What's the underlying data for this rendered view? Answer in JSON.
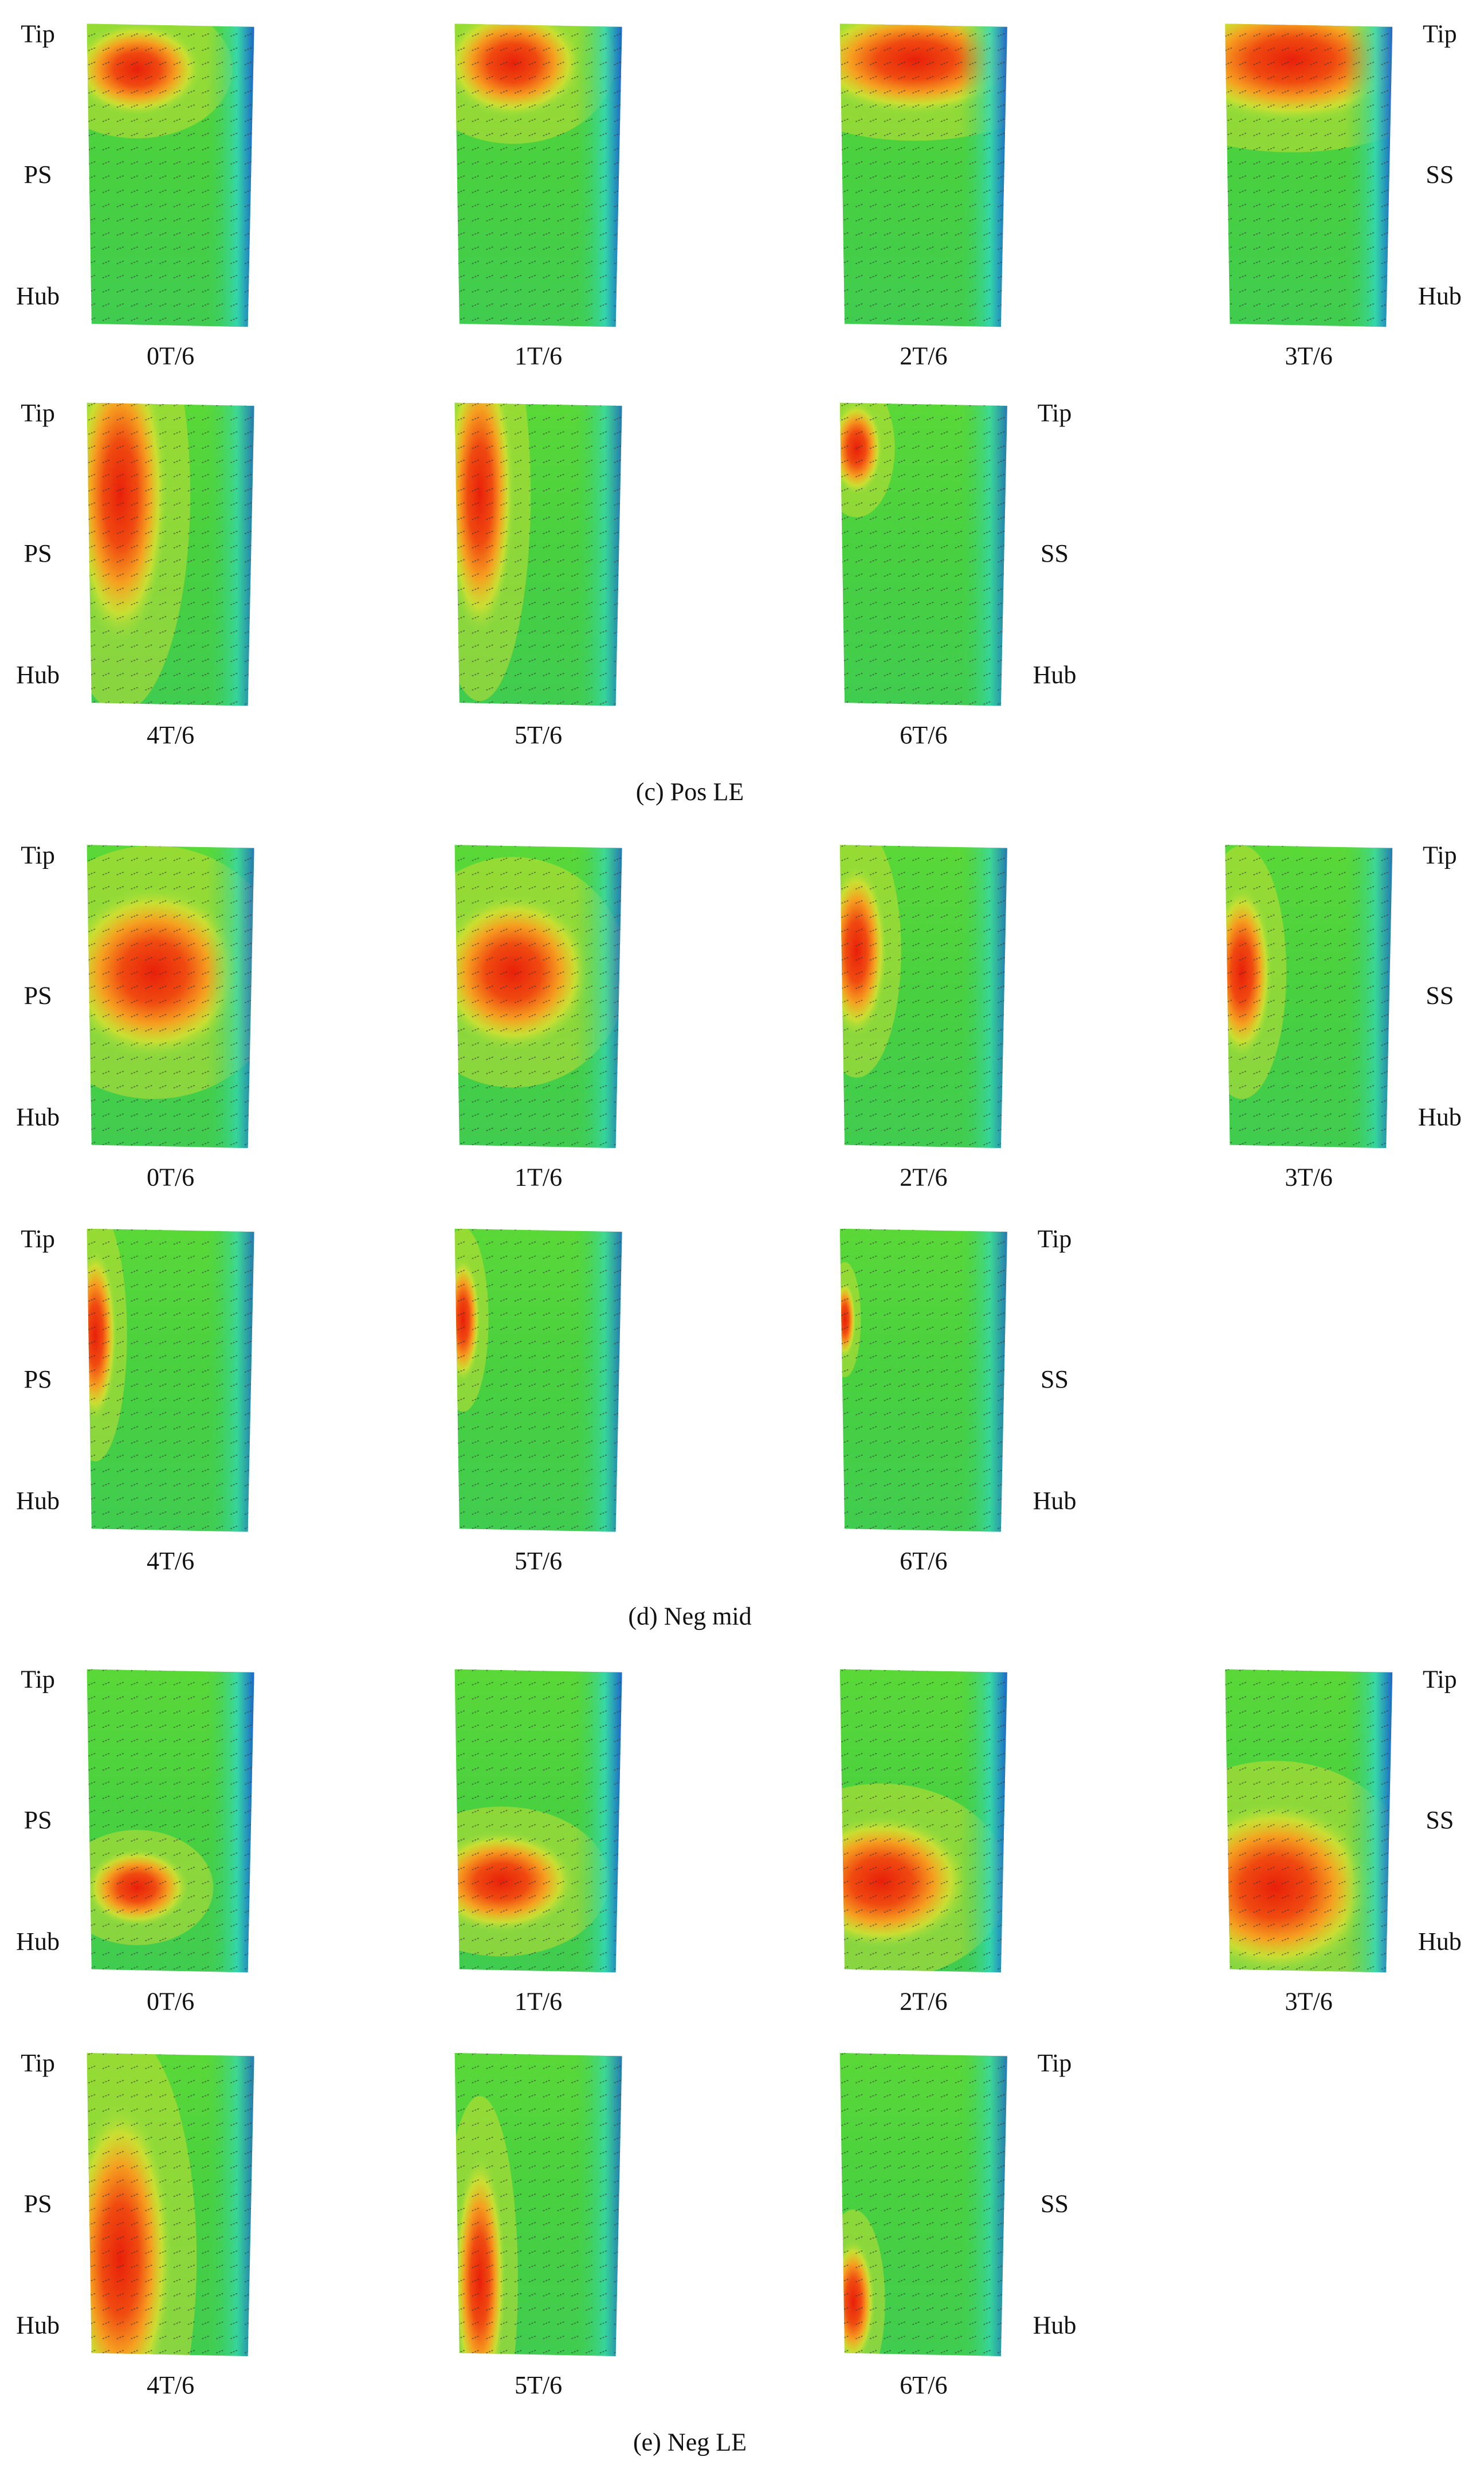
{
  "sections": [
    {
      "caption": "(c) Pos LE",
      "rows": [
        {
          "left": [
            "Tip",
            "PS",
            "Hub"
          ],
          "right": [
            "Tip",
            "SS",
            "Hub"
          ],
          "panels": [
            "0T/6",
            "1T/6",
            "2T/6",
            "3T/6"
          ]
        },
        {
          "left": [
            "Tip",
            "PS",
            "Hub"
          ],
          "right": [
            "Tip",
            "SS",
            "Hub"
          ],
          "panels": [
            "4T/6",
            "5T/6",
            "6T/6"
          ]
        }
      ]
    },
    {
      "caption": "(d) Neg mid",
      "rows": [
        {
          "left": [
            "Tip",
            "PS",
            "Hub"
          ],
          "right": [
            "Tip",
            "SS",
            "Hub"
          ],
          "panels": [
            "0T/6",
            "1T/6",
            "2T/6",
            "3T/6"
          ]
        },
        {
          "left": [
            "Tip",
            "PS",
            "Hub"
          ],
          "right": [
            "Tip",
            "SS",
            "Hub"
          ],
          "panels": [
            "4T/6",
            "5T/6",
            "6T/6"
          ]
        }
      ]
    },
    {
      "caption": "(e) Neg LE",
      "rows": [
        {
          "left": [
            "Tip",
            "PS",
            "Hub"
          ],
          "right": [
            "Tip",
            "SS",
            "Hub"
          ],
          "panels": [
            "0T/6",
            "1T/6",
            "2T/6",
            "3T/6"
          ]
        },
        {
          "left": [
            "Tip",
            "PS",
            "Hub"
          ],
          "right": [
            "Tip",
            "SS",
            "Hub"
          ],
          "panels": [
            "4T/6",
            "5T/6",
            "6T/6"
          ]
        }
      ]
    }
  ]
}
